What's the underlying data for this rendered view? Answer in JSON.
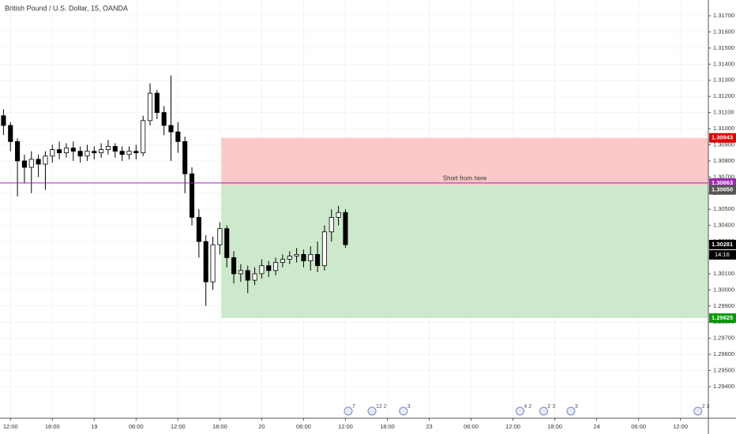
{
  "chart_data": {
    "type": "candlestick",
    "title": "British Pound / U.S. Dollar, 15, OANDA",
    "x": [
      -1,
      0,
      1,
      2,
      3,
      4,
      5,
      6,
      7,
      8,
      9,
      10,
      11,
      12,
      13,
      14,
      15,
      16,
      17,
      18,
      19,
      20,
      21,
      22,
      23,
      24,
      25,
      26,
      27,
      28,
      29,
      30,
      31,
      32,
      33,
      34,
      35,
      36,
      37,
      38,
      39,
      40,
      41,
      42,
      43,
      44,
      45,
      46,
      47,
      48
    ],
    "open": [
      1.3108,
      1.3102,
      1.3092,
      1.308,
      1.3076,
      1.3081,
      1.3078,
      1.3083,
      1.3087,
      1.3085,
      1.3088,
      1.3086,
      1.3083,
      1.3086,
      1.3085,
      1.3087,
      1.3089,
      1.3086,
      1.3084,
      1.3086,
      1.3085,
      1.3105,
      1.3122,
      1.311,
      1.3102,
      1.3098,
      1.3092,
      1.3072,
      1.3045,
      1.303,
      1.3005,
      1.3028,
      1.3038,
      1.302,
      1.301,
      1.3012,
      1.3006,
      1.301,
      1.3015,
      1.3012,
      1.3017,
      1.3019,
      1.3021,
      1.3022,
      1.3018,
      1.3022,
      1.3015,
      1.3036,
      1.3045,
      1.3048
    ],
    "high": [
      1.3112,
      1.3104,
      1.3094,
      1.3084,
      1.3086,
      1.3084,
      1.3086,
      1.309,
      1.3092,
      1.3091,
      1.3092,
      1.3089,
      1.309,
      1.3089,
      1.3091,
      1.3093,
      1.3091,
      1.3089,
      1.3089,
      1.309,
      1.3108,
      1.3128,
      1.3124,
      1.3114,
      1.3133,
      1.3104,
      1.3095,
      1.3076,
      1.305,
      1.3034,
      1.3033,
      1.3042,
      1.304,
      1.3024,
      1.3016,
      1.3015,
      1.3014,
      1.3019,
      1.3018,
      1.302,
      1.3022,
      1.3024,
      1.3026,
      1.3025,
      1.3027,
      1.303,
      1.304,
      1.305,
      1.3052,
      1.305
    ],
    "low": [
      1.3096,
      1.3086,
      1.3058,
      1.3066,
      1.306,
      1.307,
      1.3062,
      1.3079,
      1.3081,
      1.3082,
      1.308,
      1.3079,
      1.308,
      1.3081,
      1.3082,
      1.3084,
      1.3082,
      1.308,
      1.3081,
      1.3081,
      1.3083,
      1.3102,
      1.3106,
      1.3096,
      1.308,
      1.3085,
      1.306,
      1.304,
      1.302,
      1.299,
      1.3,
      1.3022,
      1.3014,
      1.3004,
      1.3005,
      1.2998,
      1.3003,
      1.3007,
      1.3008,
      1.3009,
      1.3014,
      1.3016,
      1.3017,
      1.3014,
      1.3012,
      1.3011,
      1.3012,
      1.303,
      1.304,
      1.3026
    ],
    "close": [
      1.3102,
      1.3092,
      1.308,
      1.3076,
      1.3081,
      1.3078,
      1.3083,
      1.3087,
      1.3085,
      1.3088,
      1.3086,
      1.3083,
      1.3086,
      1.3085,
      1.3087,
      1.3089,
      1.3086,
      1.3084,
      1.3086,
      1.3085,
      1.3105,
      1.3122,
      1.311,
      1.3102,
      1.3098,
      1.3092,
      1.3072,
      1.3045,
      1.303,
      1.3005,
      1.3028,
      1.3038,
      1.302,
      1.301,
      1.3012,
      1.3006,
      1.301,
      1.3015,
      1.3012,
      1.3017,
      1.3019,
      1.3021,
      1.3022,
      1.3018,
      1.3022,
      1.3015,
      1.3036,
      1.3045,
      1.3048,
      1.3028
    ],
    "up_color": "#ffffff",
    "down_color": "#000000",
    "wick_color": "#000000",
    "xlim": [
      -1.5,
      100
    ],
    "xticks": [
      {
        "value": 0,
        "label": "12:00"
      },
      {
        "value": 6,
        "label": "18:00"
      },
      {
        "value": 12,
        "label": "19"
      },
      {
        "value": 18,
        "label": "06:00"
      },
      {
        "value": 24,
        "label": "12:00"
      },
      {
        "value": 30,
        "label": "18:00"
      },
      {
        "value": 36,
        "label": "20"
      },
      {
        "value": 42,
        "label": "06:00"
      },
      {
        "value": 48,
        "label": "12:00"
      },
      {
        "value": 54,
        "label": "18:00"
      },
      {
        "value": 60,
        "label": "23"
      },
      {
        "value": 66,
        "label": "06:00"
      },
      {
        "value": 72,
        "label": "12:00"
      },
      {
        "value": 78,
        "label": "18:00"
      },
      {
        "value": 84,
        "label": "24"
      },
      {
        "value": 90,
        "label": "06:00"
      },
      {
        "value": 96,
        "label": "12:00"
      }
    ],
    "ylim": [
      1.29204,
      1.31798
    ],
    "yticks": [
      {
        "value": 1.294,
        "label": "1.29400"
      },
      {
        "value": 1.295,
        "label": "1.29500"
      },
      {
        "value": 1.296,
        "label": "1.29600"
      },
      {
        "value": 1.297,
        "label": "1.29700"
      },
      {
        "value": 1.298,
        "label": "1.29800"
      },
      {
        "value": 1.299,
        "label": "1.29900"
      },
      {
        "value": 1.3,
        "label": "1.30000"
      },
      {
        "value": 1.301,
        "label": "1.30100"
      },
      {
        "value": 1.302,
        "label": "1.30200"
      },
      {
        "value": 1.303,
        "label": "1.30300"
      },
      {
        "value": 1.304,
        "label": "1.30400"
      },
      {
        "value": 1.305,
        "label": "1.30500"
      },
      {
        "value": 1.306,
        "label": "1.30600"
      },
      {
        "value": 1.307,
        "label": "1.30700"
      },
      {
        "value": 1.308,
        "label": "1.30800"
      },
      {
        "value": 1.309,
        "label": "1.30900"
      },
      {
        "value": 1.31,
        "label": "1.31000"
      },
      {
        "value": 1.311,
        "label": "1.31100"
      },
      {
        "value": 1.312,
        "label": "1.31200"
      },
      {
        "value": 1.313,
        "label": "1.31300"
      },
      {
        "value": 1.314,
        "label": "1.31400"
      },
      {
        "value": 1.315,
        "label": "1.31500"
      },
      {
        "value": 1.316,
        "label": "1.31600"
      },
      {
        "value": 1.317,
        "label": "1.31700"
      }
    ],
    "grid": true,
    "position": {
      "start": 30.2,
      "stop": 1.30943,
      "entry": {
        "value": 1.3065,
        "label": "1.30650"
      },
      "target": 1.29825,
      "stop_color": "#e00000",
      "entry_color": "#555555",
      "target_color": "#009900",
      "stop_zone_color": "#fcc9c9",
      "target_zone_color": "#cde9cb",
      "note": "Short from here"
    },
    "hline": {
      "value": 1.30663,
      "color": "#9c27b0"
    },
    "last_price": 1.30281,
    "countdown": "14:16",
    "events": [
      {
        "x": 48.4,
        "label": "7"
      },
      {
        "x": 51.8,
        "label": "12 2"
      },
      {
        "x": 56.3,
        "label": "3"
      },
      {
        "x": 73.0,
        "label": "4 2"
      },
      {
        "x": 76.4,
        "label": "2 3"
      },
      {
        "x": 80.3,
        "label": "3"
      },
      {
        "x": 98.5,
        "label": "2 3"
      }
    ]
  }
}
